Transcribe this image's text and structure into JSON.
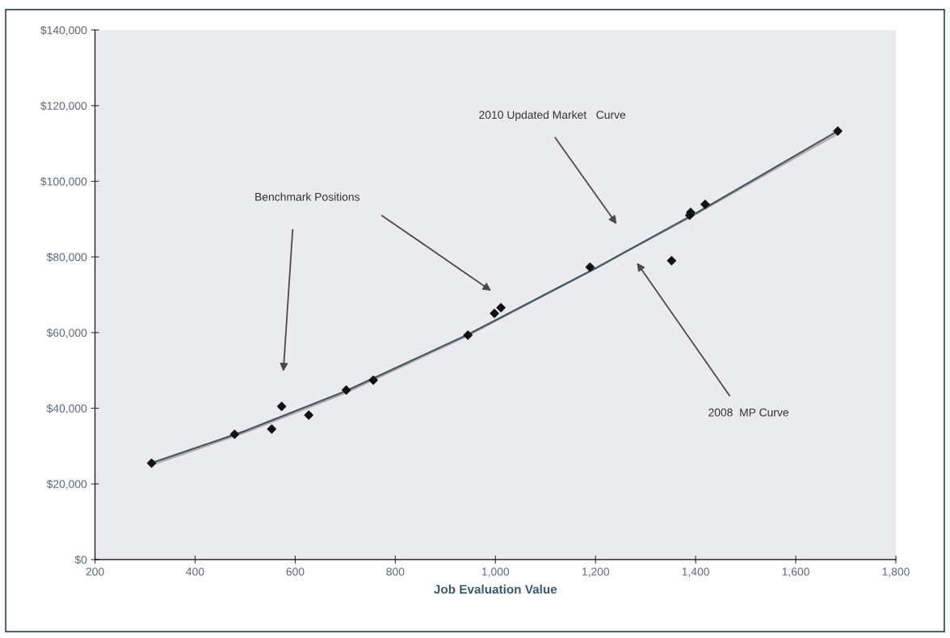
{
  "chart_data": {
    "type": "scatter",
    "xlabel": "Job Evaluation Value",
    "xlim": [
      200,
      1800
    ],
    "xticks": [
      200,
      400,
      600,
      800,
      {
        "value": 1000,
        "label": "1,000"
      },
      {
        "value": 1200,
        "label": "1,200"
      },
      {
        "value": 1400,
        "label": "1,400"
      },
      {
        "value": 1600,
        "label": "1,600"
      },
      {
        "value": 1800,
        "label": "1,800"
      }
    ],
    "ylim": [
      0,
      140000
    ],
    "yticks": [
      {
        "value": 0,
        "label": "$0"
      },
      {
        "value": 20000,
        "label": "$20,000"
      },
      {
        "value": 40000,
        "label": "$40,000"
      },
      {
        "value": 60000,
        "label": "$60,000"
      },
      {
        "value": 80000,
        "label": "$80,000"
      },
      {
        "value": 100000,
        "label": "$100,000"
      },
      {
        "value": 120000,
        "label": "$120,000"
      },
      {
        "value": 140000,
        "label": "$140,000"
      }
    ],
    "grid": false,
    "legend": false,
    "series": [
      {
        "type": "line",
        "color": "#b8a8ae",
        "marker": "none",
        "line_style": "solid",
        "x": [
          313,
          500,
          700,
          945,
          1200,
          1400,
          1684
        ],
        "values": [
          25000,
          33600,
          44000,
          59200,
          77000,
          91300,
          112600
        ]
      },
      {
        "type": "line",
        "color": "#3f5a60",
        "marker": "none",
        "line_style": "solid",
        "x": [
          313,
          500,
          700,
          945,
          1200,
          1400,
          1684
        ],
        "values": [
          25500,
          34000,
          44500,
          59500,
          77000,
          91500,
          113300
        ]
      },
      {
        "color": "#111111",
        "marker": "diamond",
        "x": [
          313,
          479,
          553,
          573,
          627,
          702,
          756,
          945,
          998,
          1011,
          1189,
          1352,
          1388,
          1390,
          1419,
          1684
        ],
        "values": [
          25500,
          33100,
          34500,
          40500,
          38200,
          44800,
          47400,
          59300,
          65100,
          66600,
          77300,
          79000,
          91000,
          91800,
          93900,
          113300
        ]
      }
    ],
    "annotations": [
      "Benchmark Positions",
      "2010 Updated Market   Curve",
      "2008  MP Curve"
    ]
  }
}
